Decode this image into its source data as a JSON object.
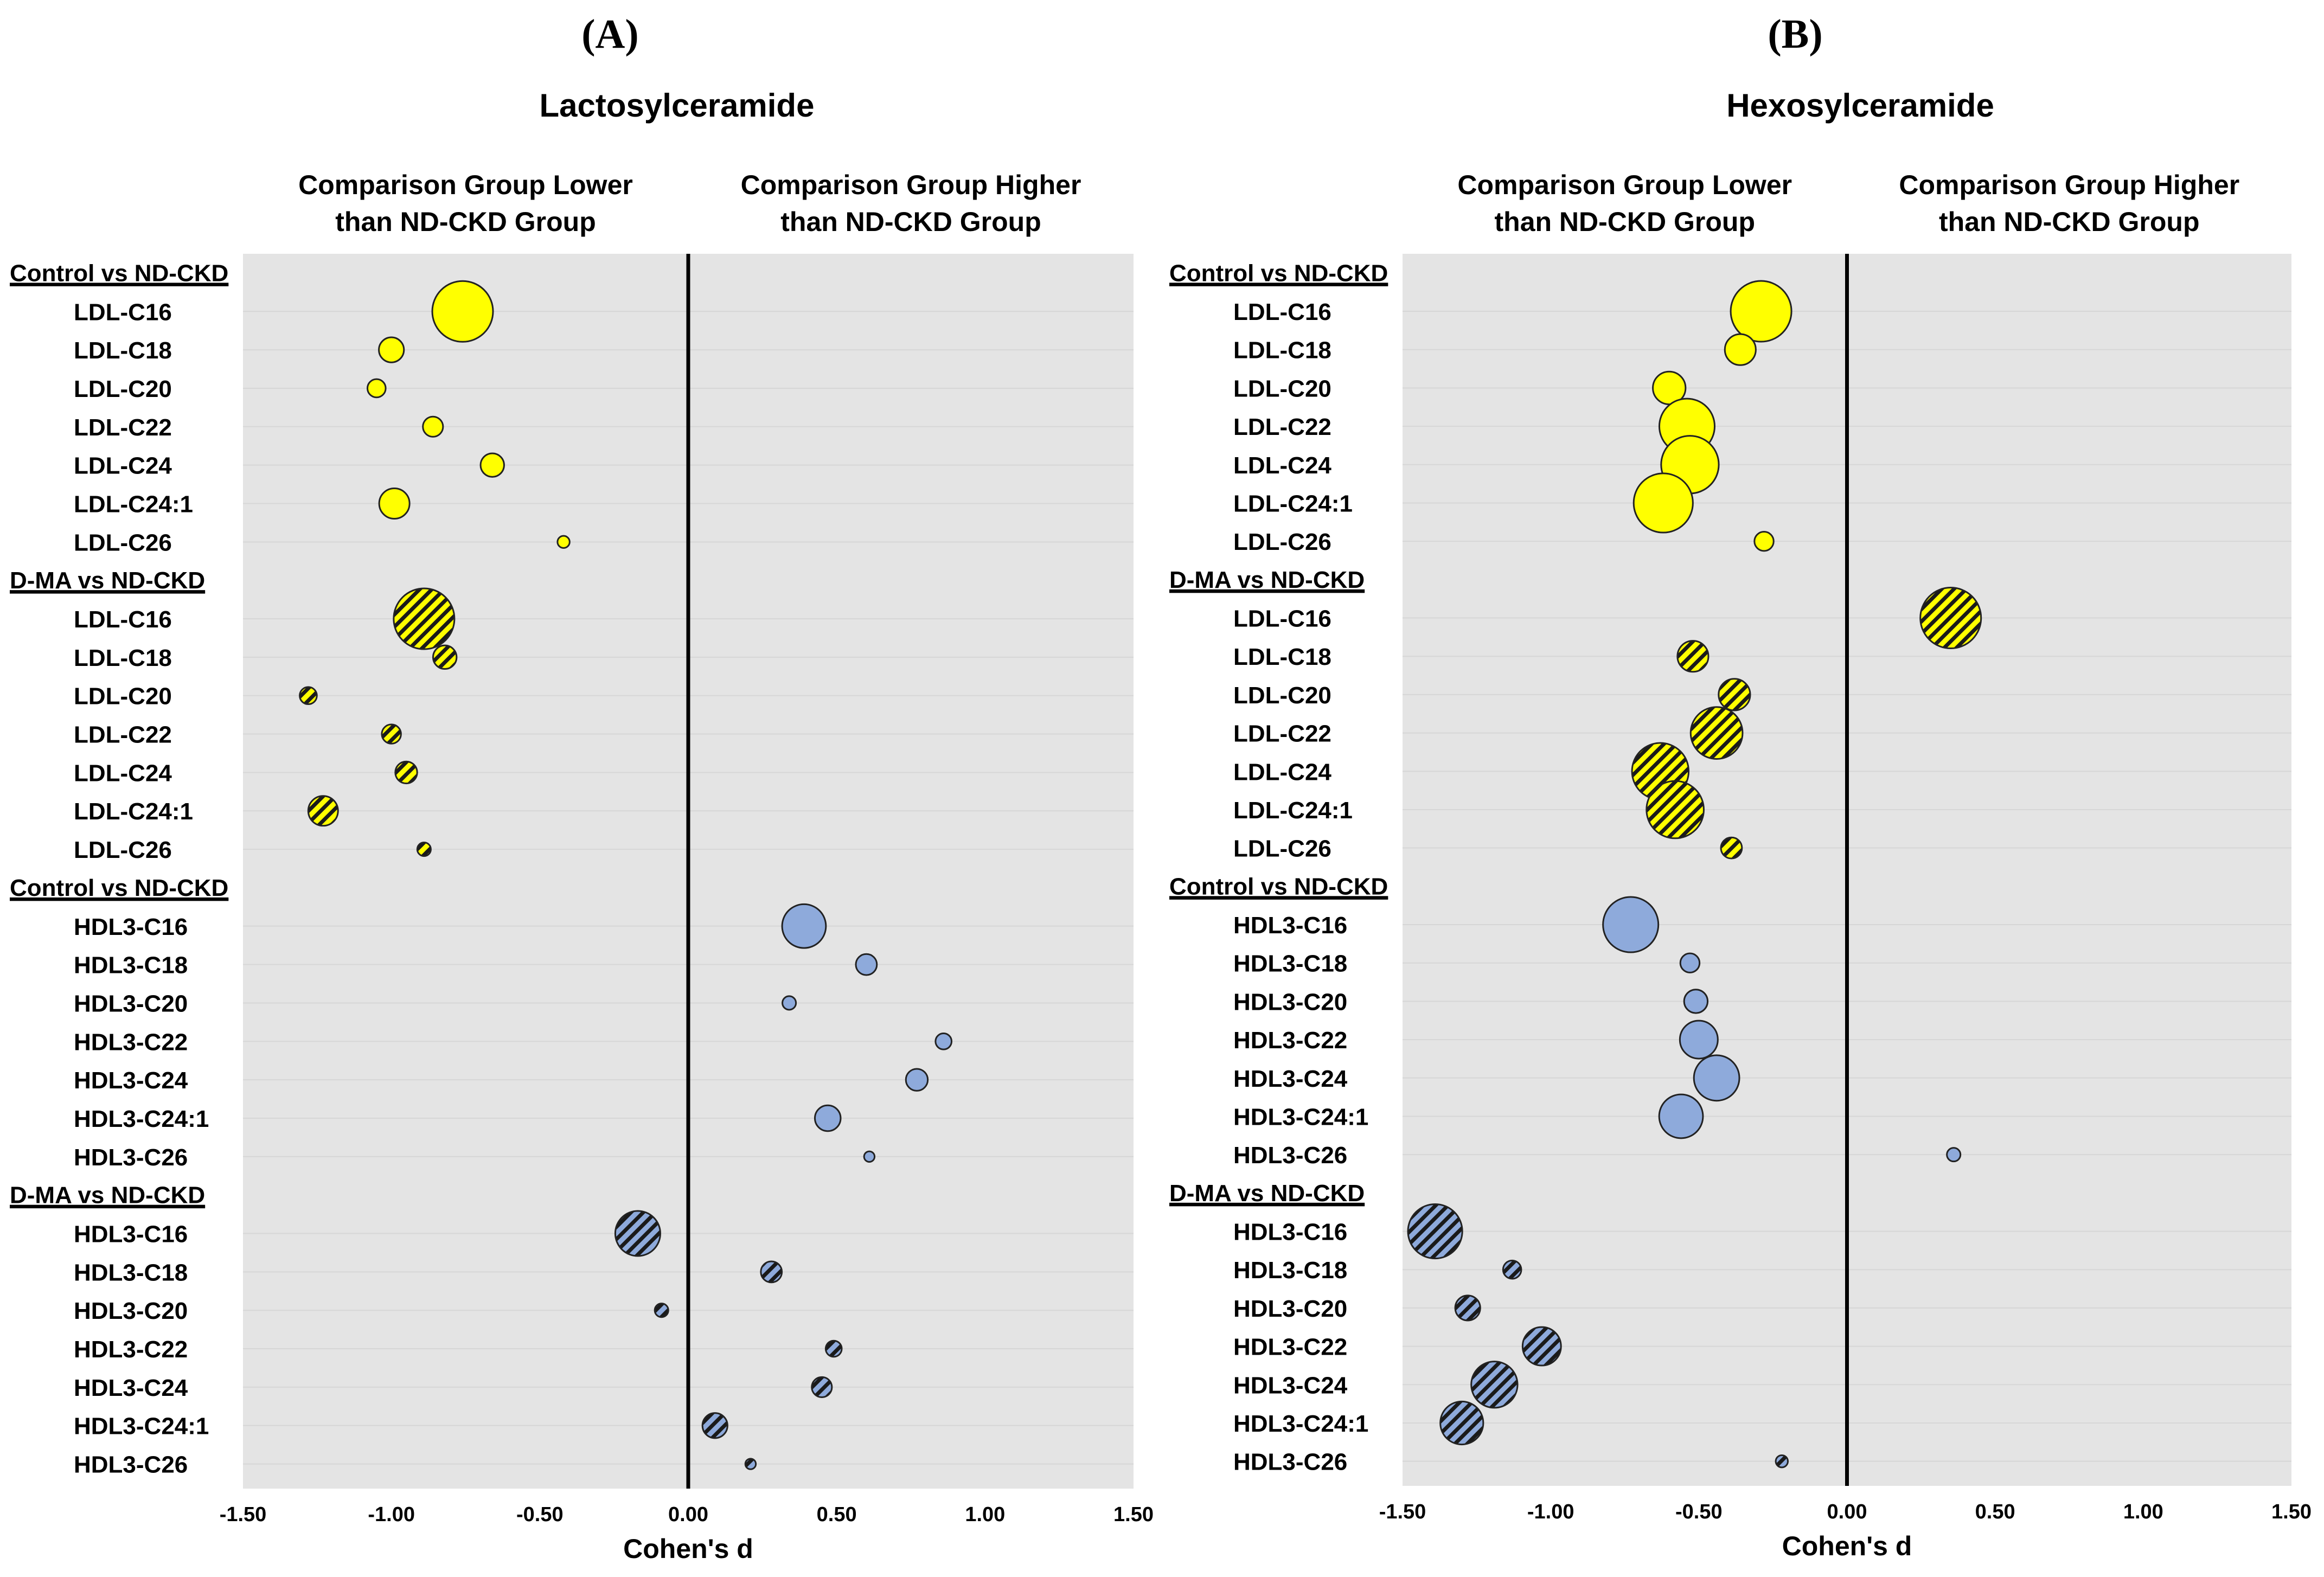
{
  "chart_data": [
    {
      "type": "scatter",
      "subtype": "bubble",
      "panel_label": "A",
      "title": "Lactosylceramide",
      "header_lower": [
        "Comparison Group Lower",
        "than ND-CKD Group"
      ],
      "header_higher": [
        "Comparison Group Higher",
        "than ND-CKD Group"
      ],
      "xlabel": "Cohen's d",
      "xlim": [
        -1.5,
        1.5
      ],
      "xticks": [
        "-1.50",
        "-1.00",
        "-0.50",
        "0.00",
        "0.50",
        "1.00",
        "1.50"
      ],
      "groups": [
        {
          "name": "Control vs ND-CKD",
          "lipoprotein": "LDL",
          "color": "#ffff00",
          "hatched": false,
          "rows": [
            {
              "label": "LDL-C16",
              "d": -0.76,
              "size": 1.0
            },
            {
              "label": "LDL-C18",
              "d": -1.0,
              "size": 0.17
            },
            {
              "label": "LDL-C20",
              "d": -1.05,
              "size": 0.09
            },
            {
              "label": "LDL-C22",
              "d": -0.86,
              "size": 0.11
            },
            {
              "label": "LDL-C24",
              "d": -0.66,
              "size": 0.15
            },
            {
              "label": "LDL-C24:1",
              "d": -0.99,
              "size": 0.25
            },
            {
              "label": "LDL-C26",
              "d": -0.42,
              "size": 0.04
            }
          ]
        },
        {
          "name": "D-MA vs ND-CKD",
          "lipoprotein": "LDL",
          "color": "#ffff00",
          "hatched": true,
          "rows": [
            {
              "label": "LDL-C16",
              "d": -0.89,
              "size": 1.0
            },
            {
              "label": "LDL-C18",
              "d": -0.82,
              "size": 0.15
            },
            {
              "label": "LDL-C20",
              "d": -1.28,
              "size": 0.08
            },
            {
              "label": "LDL-C22",
              "d": -1.0,
              "size": 0.1
            },
            {
              "label": "LDL-C24",
              "d": -0.95,
              "size": 0.13
            },
            {
              "label": "LDL-C24:1",
              "d": -1.23,
              "size": 0.24
            },
            {
              "label": "LDL-C26",
              "d": -0.89,
              "size": 0.05
            }
          ]
        },
        {
          "name": "Control vs ND-CKD",
          "lipoprotein": "HDL3",
          "color": "#8eaadb",
          "hatched": false,
          "rows": [
            {
              "label": "HDL3-C16",
              "d": 0.39,
              "size": 0.52
            },
            {
              "label": "HDL3-C18",
              "d": 0.6,
              "size": 0.12
            },
            {
              "label": "HDL3-C20",
              "d": 0.34,
              "size": 0.05
            },
            {
              "label": "HDL3-C22",
              "d": 0.86,
              "size": 0.07
            },
            {
              "label": "HDL3-C24",
              "d": 0.77,
              "size": 0.13
            },
            {
              "label": "HDL3-C24:1",
              "d": 0.47,
              "size": 0.18
            },
            {
              "label": "HDL3-C26",
              "d": 0.61,
              "size": 0.03
            }
          ]
        },
        {
          "name": "D-MA vs ND-CKD",
          "lipoprotein": "HDL3",
          "color": "#8eaadb",
          "hatched": true,
          "rows": [
            {
              "label": "HDL3-C16",
              "d": -0.17,
              "size": 0.55
            },
            {
              "label": "HDL3-C18",
              "d": 0.28,
              "size": 0.12
            },
            {
              "label": "HDL3-C20",
              "d": -0.09,
              "size": 0.05
            },
            {
              "label": "HDL3-C22",
              "d": 0.49,
              "size": 0.07
            },
            {
              "label": "HDL3-C24",
              "d": 0.45,
              "size": 0.11
            },
            {
              "label": "HDL3-C24:1",
              "d": 0.09,
              "size": 0.17
            },
            {
              "label": "HDL3-C26",
              "d": 0.21,
              "size": 0.03
            }
          ]
        }
      ]
    },
    {
      "type": "scatter",
      "subtype": "bubble",
      "panel_label": "B",
      "title": "Hexosylceramide",
      "header_lower": [
        "Comparison Group Lower",
        "than ND-CKD Group"
      ],
      "header_higher": [
        "Comparison Group Higher",
        "than ND-CKD Group"
      ],
      "xlabel": "Cohen's d",
      "xlim": [
        -1.5,
        1.5
      ],
      "xticks": [
        "-1.50",
        "-1.00",
        "-0.50",
        "0.00",
        "0.50",
        "1.00",
        "1.50"
      ],
      "groups": [
        {
          "name": "Control vs ND-CKD",
          "lipoprotein": "LDL",
          "color": "#ffff00",
          "hatched": false,
          "rows": [
            {
              "label": "LDL-C16",
              "d": -0.29,
              "size": 1.0
            },
            {
              "label": "LDL-C18",
              "d": -0.36,
              "size": 0.26
            },
            {
              "label": "LDL-C20",
              "d": -0.6,
              "size": 0.29
            },
            {
              "label": "LDL-C22",
              "d": -0.54,
              "size": 0.83
            },
            {
              "label": "LDL-C24",
              "d": -0.53,
              "size": 0.9
            },
            {
              "label": "LDL-C24:1",
              "d": -0.62,
              "size": 0.95
            },
            {
              "label": "LDL-C26",
              "d": -0.28,
              "size": 0.1
            }
          ]
        },
        {
          "name": "D-MA vs ND-CKD",
          "lipoprotein": "LDL",
          "color": "#ffff00",
          "hatched": true,
          "rows": [
            {
              "label": "LDL-C16",
              "d": 0.35,
              "size": 1.0
            },
            {
              "label": "LDL-C18",
              "d": -0.52,
              "size": 0.26
            },
            {
              "label": "LDL-C20",
              "d": -0.38,
              "size": 0.27
            },
            {
              "label": "LDL-C22",
              "d": -0.44,
              "size": 0.73
            },
            {
              "label": "LDL-C24",
              "d": -0.63,
              "size": 0.87
            },
            {
              "label": "LDL-C24:1",
              "d": -0.58,
              "size": 0.89
            },
            {
              "label": "LDL-C26",
              "d": -0.39,
              "size": 0.12
            }
          ]
        },
        {
          "name": "Control vs ND-CKD",
          "lipoprotein": "HDL3",
          "color": "#8eaadb",
          "hatched": false,
          "rows": [
            {
              "label": "HDL3-C16",
              "d": -0.73,
              "size": 0.83
            },
            {
              "label": "HDL3-C18",
              "d": -0.53,
              "size": 0.1
            },
            {
              "label": "HDL3-C20",
              "d": -0.51,
              "size": 0.15
            },
            {
              "label": "HDL3-C22",
              "d": -0.5,
              "size": 0.39
            },
            {
              "label": "HDL3-C24",
              "d": -0.44,
              "size": 0.56
            },
            {
              "label": "HDL3-C24:1",
              "d": -0.56,
              "size": 0.52
            },
            {
              "label": "HDL3-C26",
              "d": 0.36,
              "size": 0.05
            }
          ]
        },
        {
          "name": "D-MA vs ND-CKD",
          "lipoprotein": "HDL3",
          "color": "#8eaadb",
          "hatched": true,
          "rows": [
            {
              "label": "HDL3-C16",
              "d": -1.39,
              "size": 0.8
            },
            {
              "label": "HDL3-C18",
              "d": -1.13,
              "size": 0.09
            },
            {
              "label": "HDL3-C20",
              "d": -1.28,
              "size": 0.17
            },
            {
              "label": "HDL3-C22",
              "d": -1.03,
              "size": 0.4
            },
            {
              "label": "HDL3-C24",
              "d": -1.19,
              "size": 0.58
            },
            {
              "label": "HDL3-C24:1",
              "d": -1.3,
              "size": 0.5
            },
            {
              "label": "HDL3-C26",
              "d": -0.22,
              "size": 0.04
            }
          ]
        }
      ]
    }
  ]
}
